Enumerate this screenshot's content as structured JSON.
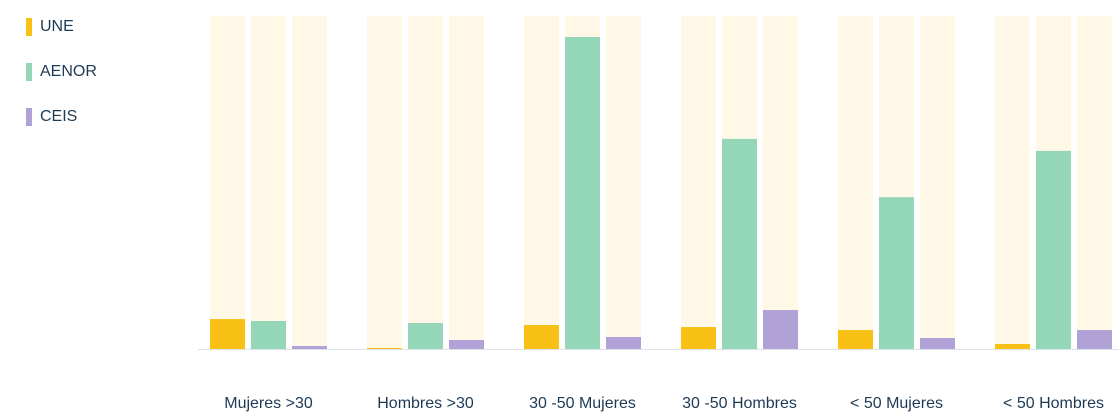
{
  "chart_data": {
    "type": "bar",
    "categories": [
      "Mujeres >30",
      "Hombres >30",
      "30 -50 Mujeres",
      "30 -50 Hombres",
      "< 50 Mujeres",
      "< 50 Hombres"
    ],
    "series": [
      {
        "name": "UNE",
        "color": "#f9c116",
        "values": [
          9.0,
          0.3,
          7.2,
          6.6,
          5.7,
          1.5
        ]
      },
      {
        "name": "AENOR",
        "color": "#93d6b8",
        "values": [
          8.4,
          7.8,
          93.7,
          63.1,
          45.6,
          59.5
        ]
      },
      {
        "name": "CEIS",
        "color": "#b0a2d6",
        "values": [
          0.9,
          2.7,
          3.6,
          11.7,
          3.3,
          5.7
        ]
      }
    ],
    "ylim": [
      0,
      100
    ],
    "track_color": "#fff8e6",
    "legend": "top-left"
  }
}
